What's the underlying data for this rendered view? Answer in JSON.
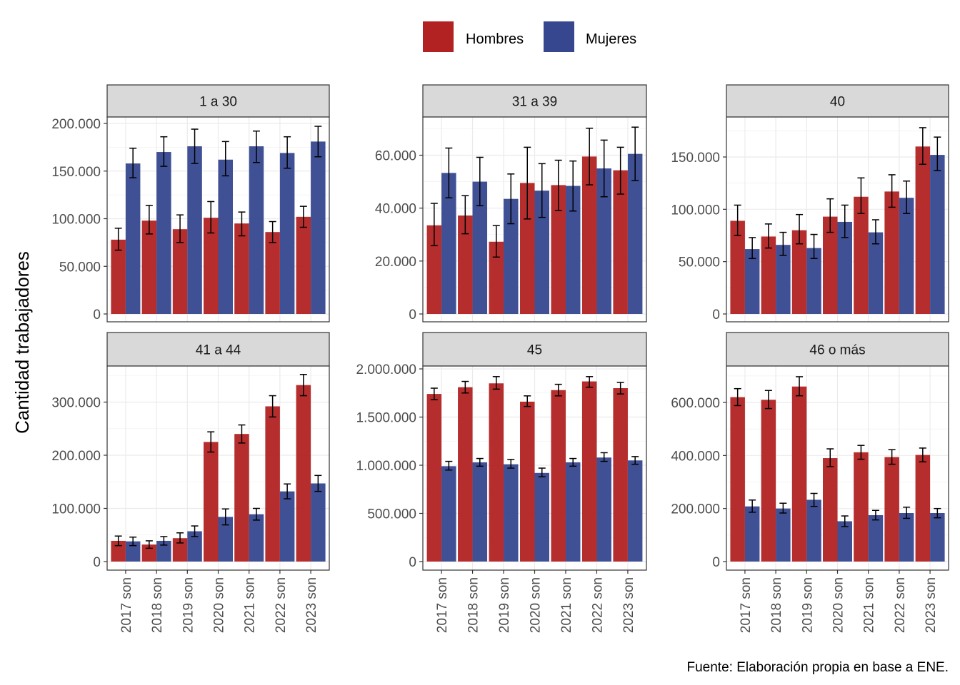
{
  "chart_data": {
    "type": "bar",
    "ylabel": "Cantidad trabajadores",
    "caption": "Fuente: Elaboración propia en base a ENE.",
    "categories": [
      "2017 son",
      "2018 son",
      "2019 son",
      "2020 son",
      "2021 son",
      "2022 son",
      "2023 son"
    ],
    "legend": {
      "position": "top",
      "entries": [
        {
          "name": "Hombres",
          "color": "#B22222"
        },
        {
          "name": "Mujeres",
          "color": "#36478F"
        }
      ]
    },
    "grid": true,
    "facets": [
      {
        "title": "1 a 30",
        "ylim": [
          0,
          200000
        ],
        "yticks": [
          0,
          50000,
          100000,
          150000,
          200000
        ],
        "ytick_labels": [
          "0",
          "50.000",
          "100.000",
          "150.000",
          "200.000"
        ],
        "series": [
          {
            "name": "Hombres",
            "values": [
              78000,
              98000,
              89000,
              101000,
              95000,
              86000,
              102000
            ],
            "errors": [
              [
                67000,
                90000
              ],
              [
                84000,
                114000
              ],
              [
                75000,
                104000
              ],
              [
                85000,
                118000
              ],
              [
                82000,
                107000
              ],
              [
                75000,
                97000
              ],
              [
                91000,
                113000
              ]
            ]
          },
          {
            "name": "Mujeres",
            "values": [
              158000,
              170000,
              176000,
              162000,
              176000,
              169000,
              181000
            ],
            "errors": [
              [
                143000,
                174000
              ],
              [
                155000,
                186000
              ],
              [
                158000,
                194000
              ],
              [
                145000,
                181000
              ],
              [
                159000,
                192000
              ],
              [
                153000,
                186000
              ],
              [
                165000,
                197000
              ]
            ]
          }
        ]
      },
      {
        "title": "31 a 39",
        "ylim": [
          0,
          60000
        ],
        "yticks": [
          0,
          20000,
          40000,
          60000
        ],
        "ytick_labels": [
          "0",
          "20.000",
          "40.000",
          "60.000"
        ],
        "series": [
          {
            "name": "Hombres",
            "values": [
              33500,
              37200,
              27300,
              49500,
              48700,
              59500,
              54300
            ],
            "errors": [
              [
                25800,
                41800
              ],
              [
                30300,
                44700
              ],
              [
                21500,
                33400
              ],
              [
                35900,
                63000
              ],
              [
                39100,
                58100
              ],
              [
                48800,
                70200
              ],
              [
                45300,
                63000
              ]
            ]
          },
          {
            "name": "Mujeres",
            "values": [
              53300,
              50000,
              43500,
              46600,
              48400,
              55000,
              60500
            ],
            "errors": [
              [
                43900,
                62700
              ],
              [
                40900,
                59200
              ],
              [
                34100,
                52900
              ],
              [
                36500,
                56800
              ],
              [
                38900,
                57800
              ],
              [
                44300,
                65700
              ],
              [
                50400,
                70600
              ]
            ]
          }
        ]
      },
      {
        "title": "40",
        "ylim": [
          0,
          150000
        ],
        "yticks": [
          0,
          50000,
          100000,
          150000
        ],
        "ytick_labels": [
          "0",
          "50.000",
          "100.000",
          "150.000"
        ],
        "series": [
          {
            "name": "Hombres",
            "values": [
              89000,
              74000,
              80000,
              93000,
              112000,
              117000,
              160000
            ],
            "errors": [
              [
                75000,
                104000
              ],
              [
                63000,
                86000
              ],
              [
                67000,
                95000
              ],
              [
                78000,
                110000
              ],
              [
                96000,
                130000
              ],
              [
                102000,
                133000
              ],
              [
                143000,
                178000
              ]
            ]
          },
          {
            "name": "Mujeres",
            "values": [
              62000,
              66000,
              63000,
              88000,
              78000,
              111000,
              152000
            ],
            "errors": [
              [
                53000,
                73000
              ],
              [
                56000,
                78000
              ],
              [
                53000,
                76000
              ],
              [
                73000,
                104000
              ],
              [
                67000,
                90000
              ],
              [
                96000,
                127000
              ],
              [
                137000,
                169000
              ]
            ]
          }
        ]
      },
      {
        "title": "41 a 44",
        "ylim": [
          0,
          300000
        ],
        "yticks": [
          0,
          100000,
          200000,
          300000
        ],
        "ytick_labels": [
          "0",
          "100.000",
          "200.000",
          "300.000"
        ],
        "series": [
          {
            "name": "Hombres",
            "values": [
              39000,
              32000,
              44000,
              225000,
              240000,
              292000,
              332000
            ],
            "errors": [
              [
                30000,
                48000
              ],
              [
                25000,
                39000
              ],
              [
                35000,
                54000
              ],
              [
                206000,
                244000
              ],
              [
                223000,
                257000
              ],
              [
                272000,
                312000
              ],
              [
                312000,
                352000
              ]
            ]
          },
          {
            "name": "Mujeres",
            "values": [
              38000,
              39000,
              57000,
              84000,
              89000,
              132000,
              147000
            ],
            "errors": [
              [
                30000,
                46000
              ],
              [
                31000,
                47000
              ],
              [
                47000,
                67000
              ],
              [
                69000,
                99000
              ],
              [
                78000,
                100000
              ],
              [
                118000,
                146000
              ],
              [
                132000,
                162000
              ]
            ]
          }
        ]
      },
      {
        "title": "45",
        "ylim": [
          0,
          2000000
        ],
        "yticks": [
          0,
          500000,
          1000000,
          1500000,
          2000000
        ],
        "ytick_labels": [
          "0",
          "500.000",
          "1.000.000",
          "1.500.000",
          "2.000.000"
        ],
        "series": [
          {
            "name": "Hombres",
            "values": [
              1740000,
              1810000,
              1850000,
              1660000,
              1780000,
              1870000,
              1800000
            ],
            "errors": [
              [
                1680000,
                1800000
              ],
              [
                1750000,
                1870000
              ],
              [
                1790000,
                1920000
              ],
              [
                1610000,
                1720000
              ],
              [
                1720000,
                1840000
              ],
              [
                1810000,
                1920000
              ],
              [
                1740000,
                1860000
              ]
            ]
          },
          {
            "name": "Mujeres",
            "values": [
              990000,
              1030000,
              1010000,
              920000,
              1030000,
              1080000,
              1050000
            ],
            "errors": [
              [
                950000,
                1040000
              ],
              [
                990000,
                1070000
              ],
              [
                970000,
                1060000
              ],
              [
                880000,
                970000
              ],
              [
                990000,
                1070000
              ],
              [
                1040000,
                1130000
              ],
              [
                1010000,
                1090000
              ]
            ]
          }
        ]
      },
      {
        "title": "46 o más",
        "ylim": [
          0,
          600000
        ],
        "yticks": [
          0,
          200000,
          400000,
          600000
        ],
        "ytick_labels": [
          "0",
          "200.000",
          "400.000",
          "600.000"
        ],
        "series": [
          {
            "name": "Hombres",
            "values": [
              620000,
              610000,
              660000,
              390000,
              412000,
              394000,
              402000
            ],
            "errors": [
              [
                588000,
                652000
              ],
              [
                577000,
                645000
              ],
              [
                625000,
                697000
              ],
              [
                358000,
                425000
              ],
              [
                386000,
                438000
              ],
              [
                367000,
                422000
              ],
              [
                376000,
                428000
              ]
            ]
          },
          {
            "name": "Mujeres",
            "values": [
              208000,
              200000,
              233000,
              152000,
              175000,
              183000,
              183000
            ],
            "errors": [
              [
                186000,
                232000
              ],
              [
                183000,
                220000
              ],
              [
                208000,
                257000
              ],
              [
                132000,
                172000
              ],
              [
                157000,
                193000
              ],
              [
                163000,
                205000
              ],
              [
                165000,
                200000
              ]
            ]
          }
        ]
      }
    ]
  }
}
